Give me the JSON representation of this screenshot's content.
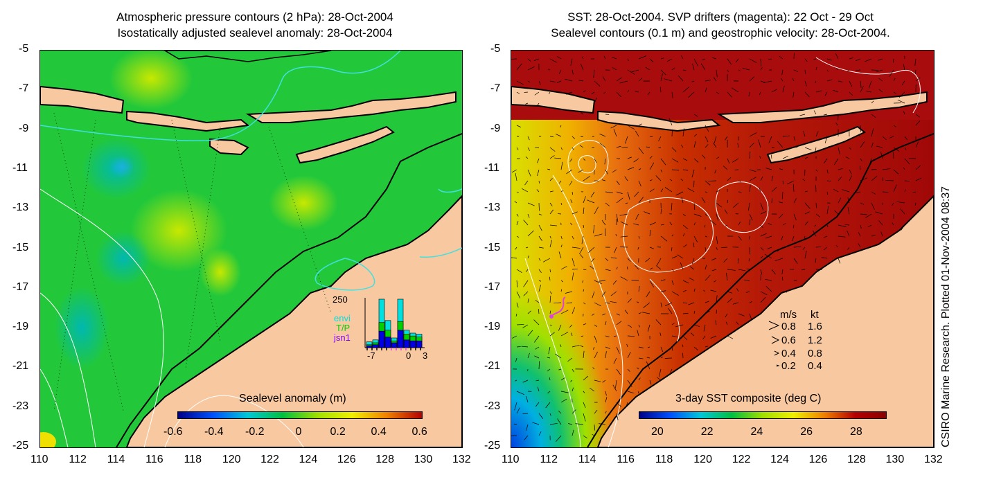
{
  "left": {
    "title1": "Atmospheric pressure contours (2 hPa): 28-Oct-2004",
    "title2": "Isostatically adjusted sealevel anomaly: 28-Oct-2004",
    "colorbar_title": "Sealevel anomaly (m)",
    "colorbar_ticks": [
      "-0.6",
      "-0.4",
      "-0.2",
      "0",
      "0.2",
      "0.4",
      "0.6"
    ],
    "colors": [
      "#00008a",
      "#0050ff",
      "#00c8d8",
      "#00c040",
      "#a0e000",
      "#f0f000",
      "#f08000",
      "#b40000"
    ],
    "inset": {
      "ymax_label": "250",
      "x_labels": [
        "-7",
        "0",
        "3"
      ],
      "legend": [
        "envi",
        "T/P",
        "jsn1"
      ],
      "legend_colors": [
        "#00e0e0",
        "#00d000",
        "#0000e0"
      ],
      "bars": [
        {
          "envi": 0.12,
          "tp": 0.06,
          "jsn1": 0.04
        },
        {
          "envi": 0.16,
          "tp": 0.1,
          "jsn1": 0.06
        },
        {
          "envi": 1.0,
          "tp": 0.52,
          "jsn1": 0.34
        },
        {
          "envi": 0.56,
          "tp": 0.36,
          "jsn1": 0.22
        },
        {
          "envi": 0.2,
          "tp": 0.14,
          "jsn1": 0.1
        },
        {
          "envi": 1.0,
          "tp": 0.54,
          "jsn1": 0.36
        },
        {
          "envi": 0.36,
          "tp": 0.28,
          "jsn1": 0.16
        },
        {
          "envi": 0.3,
          "tp": 0.24,
          "jsn1": 0.14
        },
        {
          "envi": 0.28,
          "tp": 0.22,
          "jsn1": 0.14
        }
      ]
    }
  },
  "right": {
    "title1": "SST: 28-Oct-2004. SVP drifters (magenta): 22 Oct - 29 Oct",
    "title2": "Sealevel contours (0.1 m) and geostrophic velocity: 28-Oct-2004.",
    "colorbar_title": "3-day SST composite (deg C)",
    "colorbar_ticks": [
      "20",
      "22",
      "24",
      "26",
      "28"
    ],
    "colors": [
      "#00008a",
      "#0050ff",
      "#00c8d8",
      "#00c040",
      "#a0e000",
      "#f0f000",
      "#f08000",
      "#b40000",
      "#8c0000"
    ],
    "velocity_legend": {
      "header_ms": "m/s",
      "header_kt": "kt",
      "rows": [
        {
          "ms": "0.8",
          "kt": "1.6"
        },
        {
          "ms": "0.6",
          "kt": "1.2"
        },
        {
          "ms": "0.4",
          "kt": "0.8"
        },
        {
          "ms": "0.2",
          "kt": "0.4"
        }
      ]
    }
  },
  "y_ticks": [
    "-5",
    "-7",
    "-9",
    "-11",
    "-13",
    "-15",
    "-17",
    "-19",
    "-21",
    "-23",
    "-25"
  ],
  "x_ticks": [
    "110",
    "112",
    "114",
    "116",
    "118",
    "120",
    "122",
    "124",
    "126",
    "128",
    "130",
    "132"
  ],
  "side_label": "CSIRO Marine Research. Plotted 01-Nov-2004 08:37",
  "palette": {
    "land": "#f8c8a0",
    "coast": "#000000",
    "contour": "#ffffff",
    "pressure_contour": "#40e0e0",
    "drifter": "#e040e0"
  }
}
